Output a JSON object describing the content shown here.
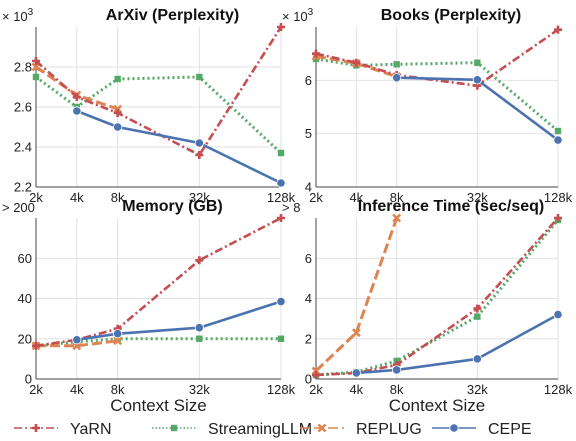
{
  "chart_data": [
    {
      "type": "line",
      "title": "ArXiv (Perplexity)",
      "multiplier": "× 10",
      "multiplier_exp": "3",
      "xlabel": "",
      "x": [
        "2k",
        "4k",
        "8k",
        "32k",
        "128k"
      ],
      "ylim": [
        2.2,
        3.0
      ],
      "yticks": [
        "2.2",
        "2.4",
        "2.6",
        "2.8"
      ],
      "ytick_values": [
        2.2,
        2.4,
        2.6,
        2.8
      ],
      "series": [
        {
          "name": "YaRN",
          "values": [
            2.83,
            2.65,
            2.57,
            2.36,
            3.0
          ]
        },
        {
          "name": "StreamingLLM",
          "values": [
            2.75,
            2.6,
            2.74,
            2.75,
            2.37
          ]
        },
        {
          "name": "REPLUG",
          "values": [
            2.8,
            2.66,
            2.59,
            null,
            null
          ]
        },
        {
          "name": "CEPE",
          "values": [
            null,
            2.58,
            2.5,
            2.42,
            2.22
          ]
        }
      ]
    },
    {
      "type": "line",
      "title": "Books (Perplexity)",
      "multiplier": "× 10",
      "multiplier_exp": "3",
      "xlabel": "",
      "x": [
        "2k",
        "4k",
        "8k",
        "32k",
        "128k"
      ],
      "ylim": [
        4.0,
        7.0
      ],
      "yticks": [
        "4",
        "5",
        "6"
      ],
      "ytick_values": [
        4,
        5,
        6
      ],
      "series": [
        {
          "name": "YaRN",
          "values": [
            6.5,
            6.33,
            6.1,
            5.9,
            6.95
          ]
        },
        {
          "name": "StreamingLLM",
          "values": [
            6.4,
            6.28,
            6.3,
            6.33,
            5.05
          ]
        },
        {
          "name": "REPLUG",
          "values": [
            6.45,
            6.32,
            6.07,
            null,
            null
          ]
        },
        {
          "name": "CEPE",
          "values": [
            null,
            null,
            6.05,
            6.01,
            4.88
          ]
        }
      ]
    },
    {
      "type": "line",
      "title": "Memory (GB)",
      "multiplier": "> 200",
      "multiplier_exp": "",
      "xlabel": "Context Size",
      "x": [
        "2k",
        "4k",
        "8k",
        "32k",
        "128k"
      ],
      "ylim": [
        0,
        80
      ],
      "yticks": [
        "0",
        "20",
        "40",
        "60"
      ],
      "ytick_values": [
        0,
        20,
        40,
        60
      ],
      "series": [
        {
          "name": "YaRN",
          "values": [
            16.5,
            19.5,
            25,
            59,
            80
          ]
        },
        {
          "name": "StreamingLLM",
          "values": [
            16.5,
            18.5,
            20,
            20,
            20
          ]
        },
        {
          "name": "REPLUG",
          "values": [
            16.5,
            16.5,
            19,
            null,
            null
          ]
        },
        {
          "name": "CEPE",
          "values": [
            null,
            19.5,
            22.5,
            25.5,
            38.5
          ]
        }
      ]
    },
    {
      "type": "line",
      "title": "Inference Time (sec/seq)",
      "multiplier": "> 8",
      "multiplier_exp": "",
      "xlabel": "Context Size",
      "x": [
        "2k",
        "4k",
        "8k",
        "32k",
        "128k"
      ],
      "ylim": [
        0,
        8
      ],
      "yticks": [
        "0",
        "2",
        "4",
        "6"
      ],
      "ytick_values": [
        0,
        2,
        4,
        6
      ],
      "series": [
        {
          "name": "YaRN",
          "values": [
            0.2,
            0.3,
            0.7,
            3.5,
            8.0
          ]
        },
        {
          "name": "StreamingLLM",
          "values": [
            0.2,
            0.35,
            0.9,
            3.1,
            7.9
          ]
        },
        {
          "name": "REPLUG",
          "values": [
            0.4,
            2.3,
            8.0,
            null,
            null
          ]
        },
        {
          "name": "CEPE",
          "values": [
            null,
            0.3,
            0.45,
            1.0,
            3.2
          ]
        }
      ]
    }
  ],
  "legend": [
    {
      "name": "YaRN",
      "color": "#c44e52",
      "marker": "plus",
      "dash": "dashdot"
    },
    {
      "name": "StreamingLLM",
      "color": "#55a868",
      "marker": "square",
      "dash": "dotted"
    },
    {
      "name": "REPLUG",
      "color": "#dd8452",
      "marker": "x",
      "dash": "dashed"
    },
    {
      "name": "CEPE",
      "color": "#4c72b0",
      "marker": "circle",
      "dash": "solid"
    }
  ],
  "grid": true,
  "legend_position": "bottom"
}
